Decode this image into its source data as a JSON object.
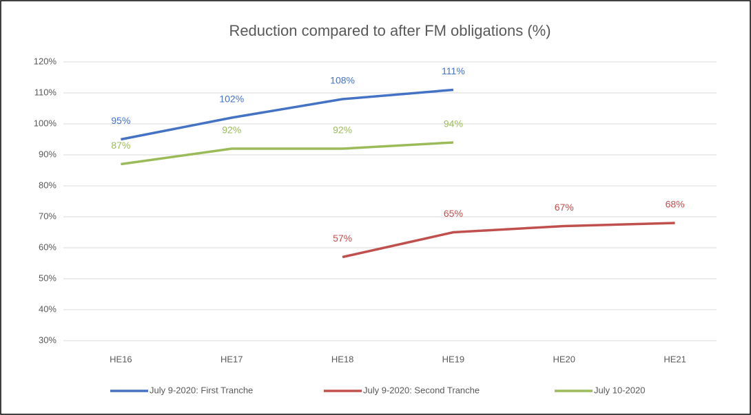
{
  "chart_data": {
    "type": "line",
    "title": "Reduction compared to after FM obligations (%)",
    "categories": [
      "HE16",
      "HE17",
      "HE18",
      "HE19",
      "HE20",
      "HE21"
    ],
    "series": [
      {
        "name": "July 9-2020: First Tranche",
        "color": "#4472c4",
        "values": [
          95,
          102,
          108,
          111,
          null,
          null
        ],
        "value_labels": [
          "95%",
          "102%",
          "108%",
          "111%",
          null,
          null
        ]
      },
      {
        "name": "July 9-2020: Second Tranche",
        "color": "#c0504d",
        "values": [
          null,
          null,
          57,
          65,
          67,
          68
        ],
        "value_labels": [
          null,
          null,
          "57%",
          "65%",
          "67%",
          "68%"
        ]
      },
      {
        "name": "July 10-2020",
        "color": "#9bbb59",
        "values": [
          87,
          92,
          92,
          94,
          null,
          null
        ],
        "value_labels": [
          "87%",
          "92%",
          "92%",
          "94%",
          null,
          null
        ]
      }
    ],
    "ylim": [
      30,
      120
    ],
    "yticks": [
      {
        "value": 30,
        "label": "30%"
      },
      {
        "value": 40,
        "label": "40%"
      },
      {
        "value": 50,
        "label": "50%"
      },
      {
        "value": 60,
        "label": "60%"
      },
      {
        "value": 70,
        "label": "70%"
      },
      {
        "value": 80,
        "label": "80%"
      },
      {
        "value": 90,
        "label": "90%"
      },
      {
        "value": 100,
        "label": "100%"
      },
      {
        "value": 110,
        "label": "110%"
      },
      {
        "value": 120,
        "label": "120%"
      }
    ],
    "grid": true,
    "legend": "bottom"
  }
}
